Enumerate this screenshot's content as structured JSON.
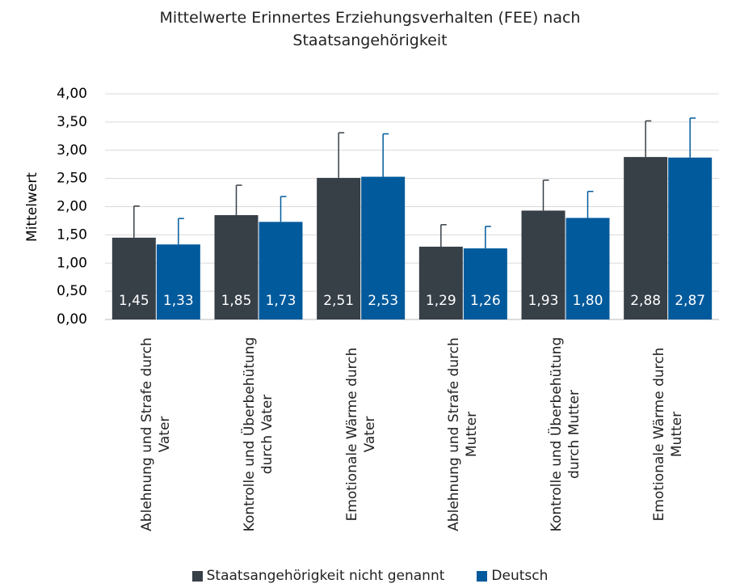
{
  "chart_data": {
    "type": "bar",
    "title": "Mittelwerte Erinnertes Erziehungsverhalten (FEE) nach Staatsangehörigkeit",
    "y_label": "Mittelwert",
    "categories": [
      "Ablehnung und Strafe durch Vater",
      "Kontrolle und Überbehütung durch Vater",
      "Emotionale Wärme durch Vater",
      "Ablehnung und Strafe durch Mutter",
      "Kontrolle und Überbehütung durch Mutter",
      "Emotionale Wärme durch Mutter"
    ],
    "series": [
      {
        "name": "Staatsangehörigkeit nicht genannt",
        "color": "#373f47",
        "values": [
          1.45,
          1.85,
          2.51,
          1.29,
          1.93,
          2.88
        ],
        "value_labels": [
          "1,45",
          "1,85",
          "2,51",
          "1,29",
          "1,93",
          "2,88"
        ],
        "errors": [
          0.56,
          0.53,
          0.8,
          0.39,
          0.54,
          0.64
        ]
      },
      {
        "name": "Deutsch",
        "color": "#005a9c",
        "values": [
          1.33,
          1.73,
          2.53,
          1.26,
          1.8,
          2.87
        ],
        "value_labels": [
          "1,33",
          "1,73",
          "2,53",
          "1,26",
          "1,80",
          "2,87"
        ],
        "errors": [
          0.46,
          0.45,
          0.76,
          0.39,
          0.47,
          0.7
        ]
      }
    ],
    "ylim": [
      0,
      4
    ],
    "yticks": [
      {
        "value": 0,
        "label": "0,00"
      },
      {
        "value": 0.5,
        "label": "0,50"
      },
      {
        "value": 1,
        "label": "1,00"
      },
      {
        "value": 1.5,
        "label": "1,50"
      },
      {
        "value": 2,
        "label": "2,00"
      },
      {
        "value": 2.5,
        "label": "2,50"
      },
      {
        "value": 3,
        "label": "3,00"
      },
      {
        "value": 3.5,
        "label": "3,50"
      },
      {
        "value": 4,
        "label": "4,00"
      }
    ],
    "grid": true
  }
}
